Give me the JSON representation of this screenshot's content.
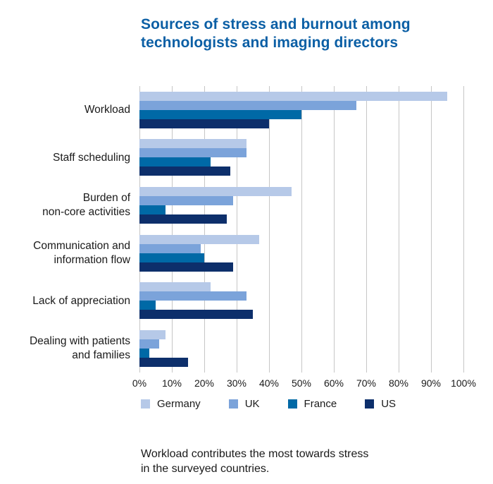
{
  "title": "Sources of stress and burnout among\ntechnologists and imaging directors",
  "caption": "Workload contributes the most towards stress\nin the surveyed countries.",
  "colors": {
    "title_blue": "#0b5fa5",
    "gridline": "#c6c6c6",
    "text": "#1a1a1a"
  },
  "chart_data": {
    "type": "bar",
    "orientation": "horizontal",
    "title": "Sources of stress and burnout among technologists and imaging directors",
    "xlabel": "",
    "ylabel": "",
    "xlim": [
      0,
      100
    ],
    "grid": "vertical",
    "legend_position": "bottom",
    "x_ticks": [
      "0%",
      "10%",
      "20%",
      "30%",
      "40%",
      "50%",
      "60%",
      "70%",
      "80%",
      "90%",
      "100%"
    ],
    "categories": [
      "Workload",
      "Staff scheduling",
      "Burden of\nnon-core activities",
      "Communication and\ninformation flow",
      "Lack of appreciation",
      "Dealing with patients\nand families"
    ],
    "series": [
      {
        "name": "Germany",
        "color": "#b6c9e8",
        "values": [
          95,
          33,
          47,
          37,
          22,
          8
        ]
      },
      {
        "name": "UK",
        "color": "#7ba3da",
        "values": [
          67,
          33,
          29,
          19,
          33,
          6
        ]
      },
      {
        "name": "France",
        "color": "#0069a6",
        "values": [
          50,
          22,
          8,
          20,
          5,
          3
        ]
      },
      {
        "name": "US",
        "color": "#0d2f6b",
        "values": [
          40,
          28,
          27,
          29,
          35,
          15
        ]
      }
    ]
  }
}
